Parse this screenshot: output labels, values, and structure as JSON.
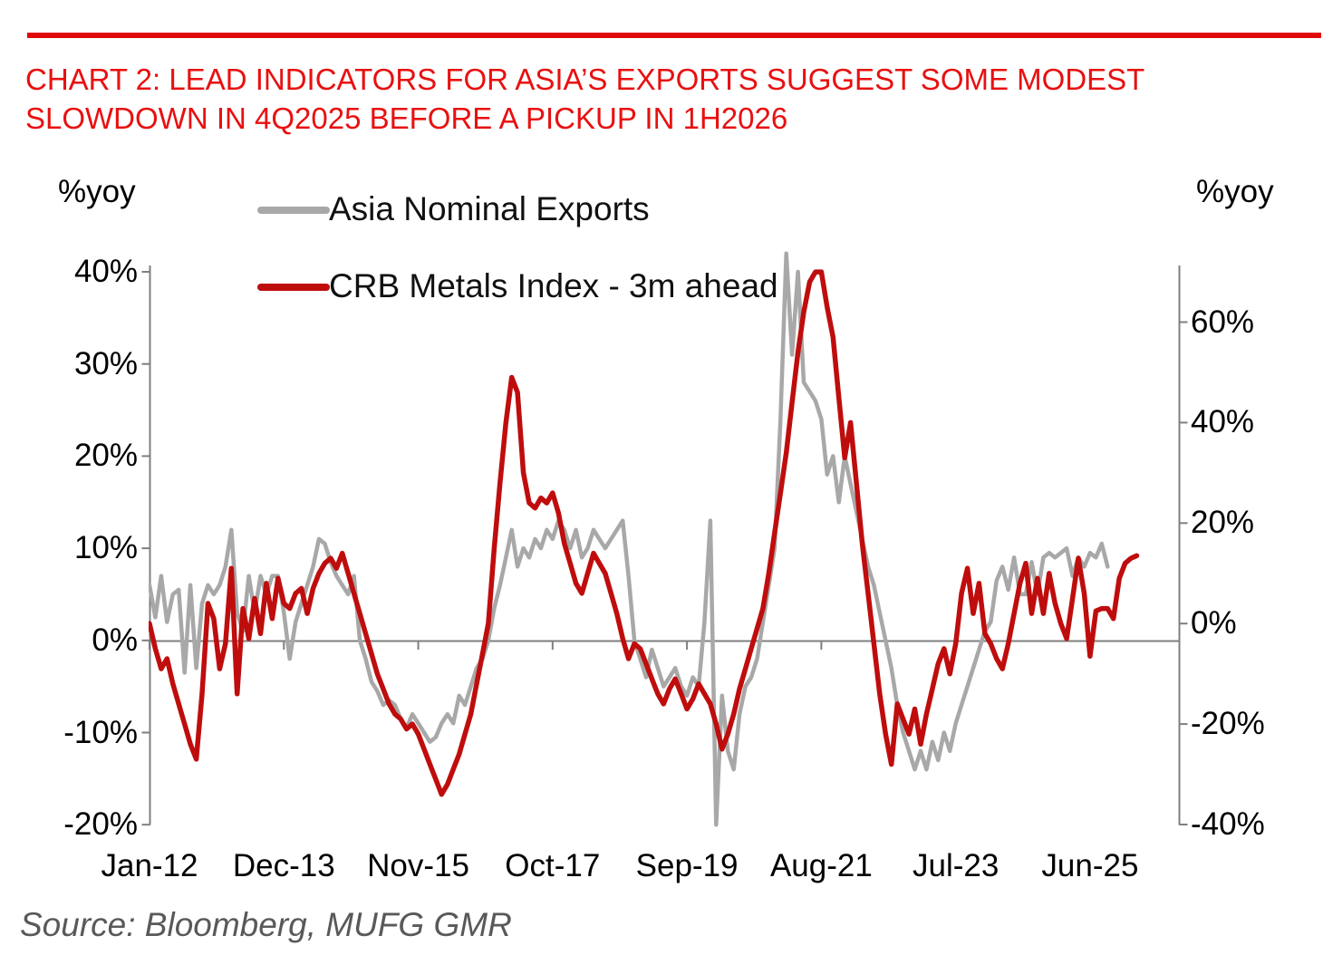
{
  "title": {
    "line1": "CHART 2: LEAD INDICATORS FOR ASIA’S EXPORTS SUGGEST SOME MODEST",
    "line2": "SLOWDOWN IN 4Q2025 BEFORE A PICKUP IN 1H2026"
  },
  "legend": [
    {
      "label": "Asia Nominal Exports",
      "color": "#a8a8a8"
    },
    {
      "label": "CRB Metals Index - 3m ahead",
      "color": "#bf0d0d"
    }
  ],
  "axes": {
    "left_unit": "%yoy",
    "right_unit": "%yoy"
  },
  "source": "Source: Bloomberg, MUFG GMR",
  "accent_color": "#e10a0a",
  "chart_data": {
    "type": "line",
    "title": "CHART 2: LEAD INDICATORS FOR ASIA'S EXPORTS SUGGEST SOME MODEST SLOWDOWN IN 4Q2025 BEFORE A PICKUP IN 1H2026",
    "grid": "zero-line-only",
    "legend_position": "top-left",
    "x_axis": {
      "tick_labels": [
        "Jan-12",
        "Dec-13",
        "Nov-15",
        "Oct-17",
        "Sep-19",
        "Aug-21",
        "Jul-23",
        "Jun-25"
      ],
      "tick_interval_months": 23,
      "frequency": "monthly"
    },
    "y_axis_left": {
      "label": "%yoy",
      "range": [
        -20,
        40
      ],
      "ticks": [
        {
          "value": 40,
          "label": "40%"
        },
        {
          "value": 30,
          "label": "30%"
        },
        {
          "value": 20,
          "label": "20%"
        },
        {
          "value": 10,
          "label": "10%"
        },
        {
          "value": 0,
          "label": "0%"
        },
        {
          "value": -10,
          "label": "-10%"
        },
        {
          "value": -20,
          "label": "-20%"
        }
      ]
    },
    "y_axis_right": {
      "label": "%yoy",
      "range": [
        -41,
        70
      ],
      "ticks": [
        {
          "value": 60,
          "label": "60%"
        },
        {
          "value": 40,
          "label": "40%"
        },
        {
          "value": 20,
          "label": "20%"
        },
        {
          "value": 0,
          "label": "0%"
        },
        {
          "value": -20,
          "label": "-20%"
        },
        {
          "value": -40,
          "label": "-40%"
        }
      ]
    },
    "series": [
      {
        "name": "Asia Nominal Exports",
        "axis": "left",
        "color": "#a8a8a8",
        "stroke_width": 4.5,
        "start": "2012-01",
        "frequency": "monthly",
        "values": [
          6,
          2.5,
          7,
          2,
          5,
          5.5,
          -3.5,
          6,
          -3,
          4,
          6,
          5,
          6,
          8,
          12,
          3,
          1,
          7,
          3,
          7,
          5,
          7,
          7,
          3,
          -2,
          2,
          4,
          6,
          8,
          11,
          10.5,
          8.5,
          7,
          6,
          5,
          7,
          0,
          -2,
          -4.5,
          -5.5,
          -7,
          -6.5,
          -7,
          -8.5,
          -9.5,
          -8,
          -9,
          -10,
          -11,
          -10.5,
          -9,
          -8,
          -9,
          -6,
          -7,
          -5,
          -3,
          -2,
          0,
          3.5,
          6,
          9,
          12,
          8,
          10,
          9,
          11,
          10,
          12,
          11,
          13,
          12,
          10,
          12,
          9,
          10,
          12,
          11,
          10,
          11,
          12,
          13,
          7,
          0,
          -2,
          -4,
          -1,
          -3,
          -5,
          -4,
          -3,
          -5,
          -6,
          -4,
          -5,
          2,
          13,
          -20,
          -6,
          -12,
          -14,
          -8,
          -5,
          -4,
          -2,
          2,
          6,
          10,
          24,
          42,
          31,
          40,
          28,
          27,
          26,
          24,
          18,
          20,
          15,
          20,
          17,
          14,
          11,
          8,
          6,
          3,
          0,
          -3,
          -7,
          -10,
          -12,
          -14,
          -12,
          -14,
          -11,
          -13,
          -10,
          -12,
          -9,
          -7,
          -5,
          -3,
          -1,
          1,
          2,
          6.5,
          8,
          5.5,
          9,
          5,
          5,
          8.5,
          5,
          9,
          9.5,
          9,
          9.5,
          10,
          7,
          9,
          8,
          9.5,
          9,
          10.5,
          8
        ]
      },
      {
        "name": "CRB Metals Index - 3m ahead",
        "axis": "right",
        "color": "#bf0d0d",
        "stroke_width": 5.5,
        "start": "2012-01",
        "frequency": "monthly",
        "values": [
          0,
          -5,
          -9,
          -7,
          -12,
          -16,
          -20,
          -24,
          -27,
          -14,
          4,
          1,
          -9,
          -4,
          11,
          -14,
          3,
          -3,
          5,
          -2,
          8,
          1,
          9,
          4,
          3,
          6,
          7,
          2,
          7,
          10,
          12,
          13,
          11,
          14,
          10,
          6,
          2,
          -2,
          -6,
          -10,
          -13,
          -16,
          -18,
          -19,
          -21,
          -20,
          -22,
          -25,
          -28,
          -31,
          -34,
          -32,
          -29,
          -26,
          -22,
          -18,
          -12,
          -6,
          0,
          15,
          28,
          40,
          49,
          46,
          30,
          24,
          23,
          25,
          24,
          26,
          22,
          16,
          12,
          8,
          6,
          10,
          14,
          12,
          10,
          6,
          2,
          -3,
          -7,
          -4,
          -5,
          -8,
          -11,
          -14,
          -16,
          -13,
          -11,
          -14,
          -17,
          -15,
          -12,
          -14,
          -16,
          -20,
          -25,
          -22,
          -18,
          -13,
          -9,
          -5,
          -1,
          3,
          10,
          18,
          26,
          34,
          44,
          54,
          62,
          68,
          70,
          70,
          63,
          57,
          45,
          33,
          40,
          28,
          16,
          6,
          -4,
          -14,
          -22,
          -28,
          -16,
          -19,
          -22,
          -17,
          -24,
          -18,
          -13,
          -8,
          -5,
          -10,
          -4,
          6,
          11,
          2,
          8,
          -2,
          -4,
          -7,
          -9,
          -4,
          2,
          8,
          12,
          2,
          9,
          2,
          10,
          4,
          0,
          -3,
          5,
          13,
          6,
          -6.5,
          2.5,
          3,
          3,
          1,
          9,
          12,
          13,
          13.5
        ]
      }
    ],
    "source": "Source: Bloomberg, MUFG GMR"
  }
}
